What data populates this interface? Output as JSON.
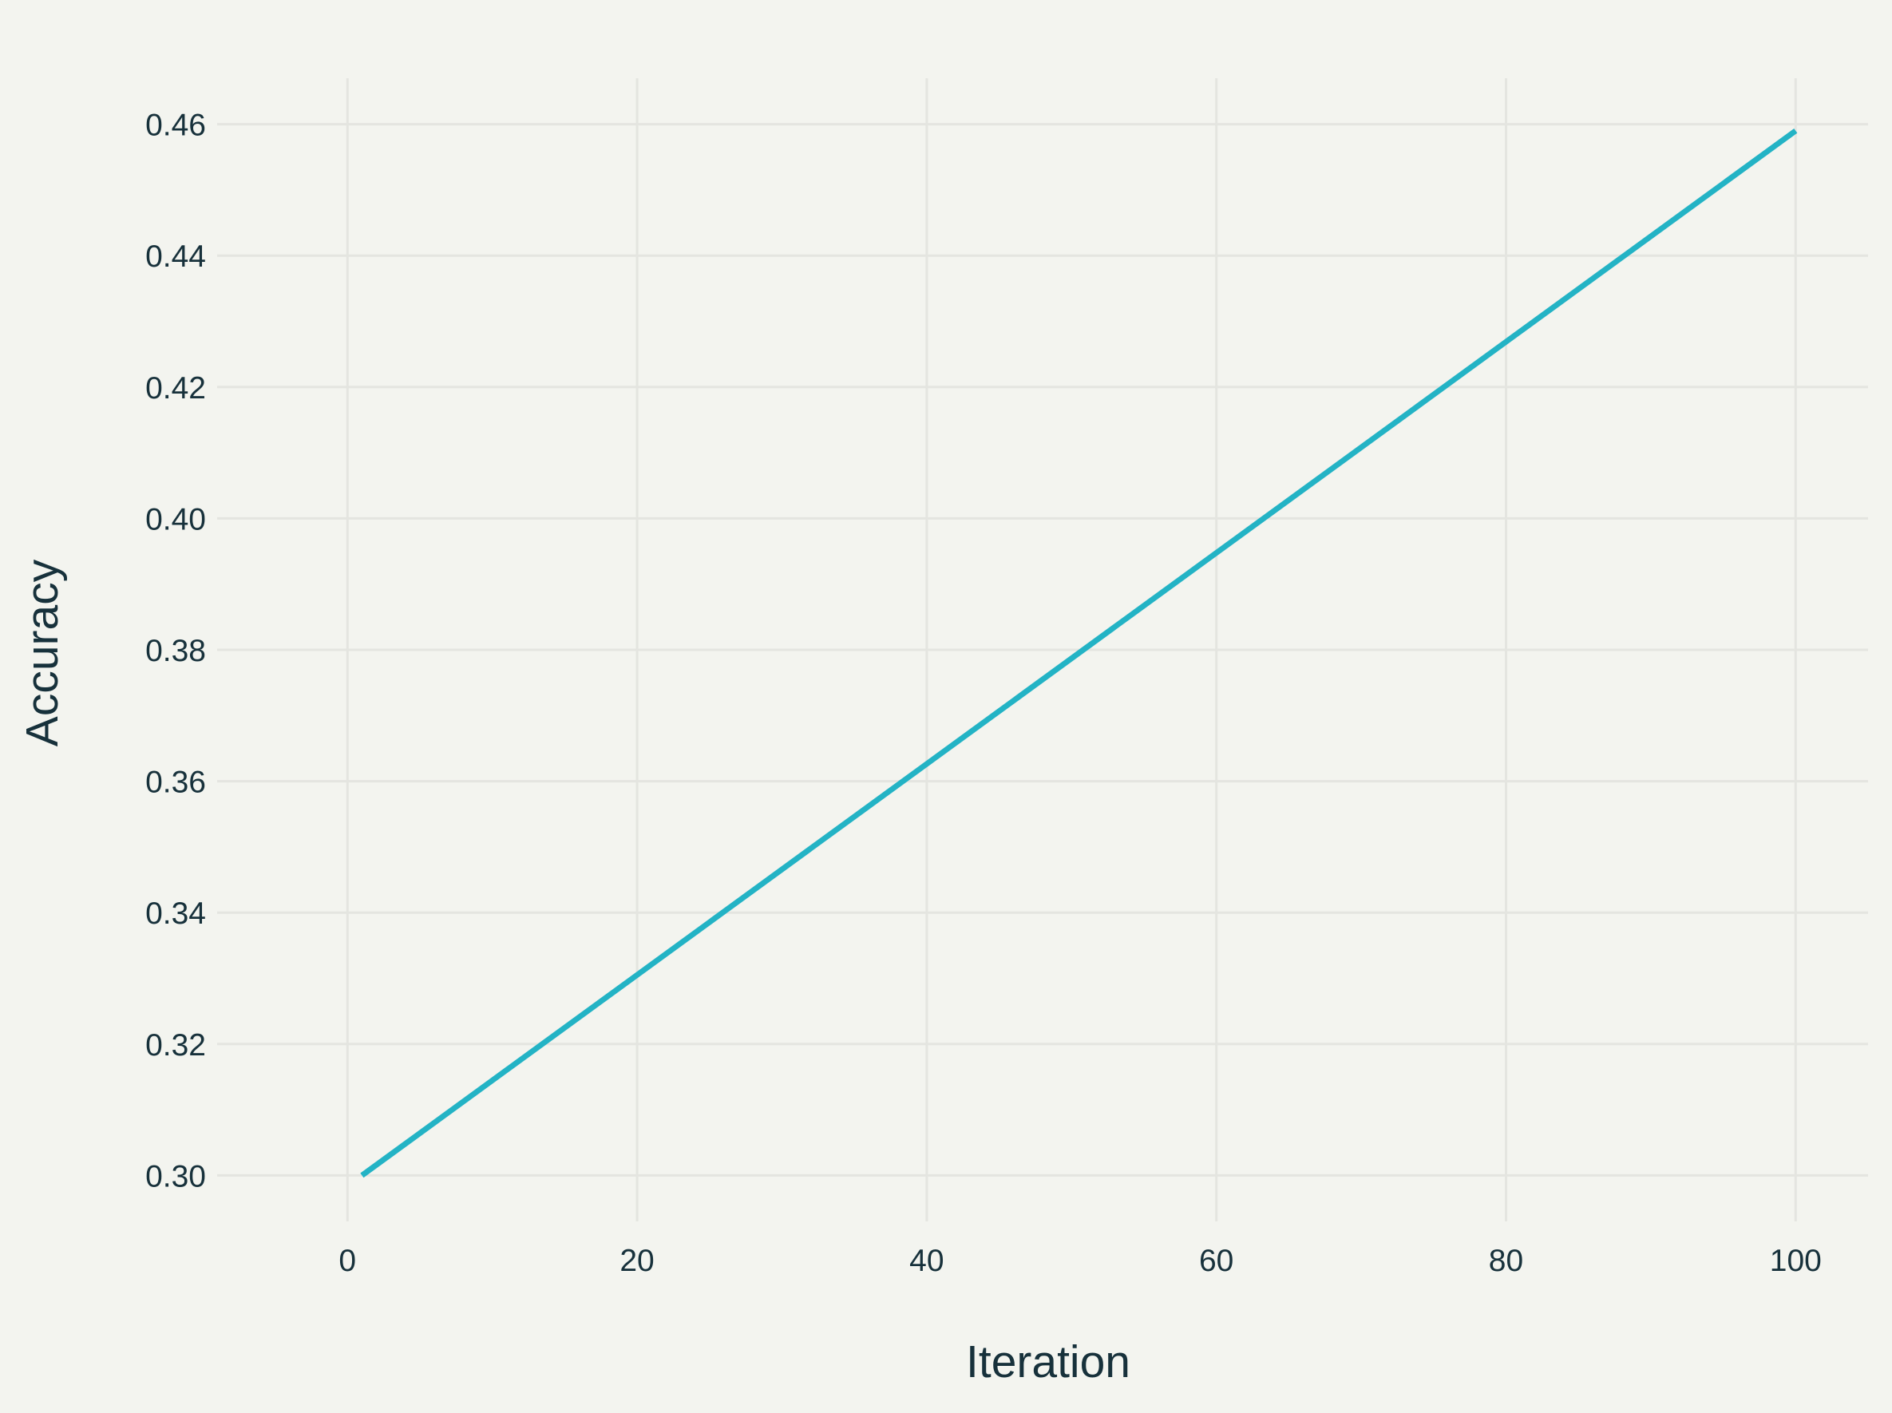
{
  "chart_data": {
    "type": "line",
    "title": "",
    "xlabel": "Iteration",
    "ylabel": "Accuracy",
    "xlim": [
      -9,
      105
    ],
    "ylim": [
      0.293,
      0.467
    ],
    "x_ticks": [
      0,
      20,
      40,
      60,
      80,
      100
    ],
    "x_tick_labels": [
      "0",
      "20",
      "40",
      "60",
      "80",
      "100"
    ],
    "y_ticks": [
      0.3,
      0.32,
      0.34,
      0.36,
      0.38,
      0.4,
      0.42,
      0.44,
      0.46
    ],
    "y_tick_labels": [
      "0.30",
      "0.32",
      "0.34",
      "0.36",
      "0.38",
      "0.40",
      "0.42",
      "0.44",
      "0.46"
    ],
    "grid": true,
    "legend": "none",
    "series": [
      {
        "x": [
          1,
          100
        ],
        "values": [
          0.3,
          0.459
        ],
        "color": "#23b3c5"
      }
    ],
    "colors": {
      "background": "#f3f4ef",
      "grid": "#e4e5e0",
      "text": "#17313b",
      "line": "#23b3c5"
    }
  }
}
